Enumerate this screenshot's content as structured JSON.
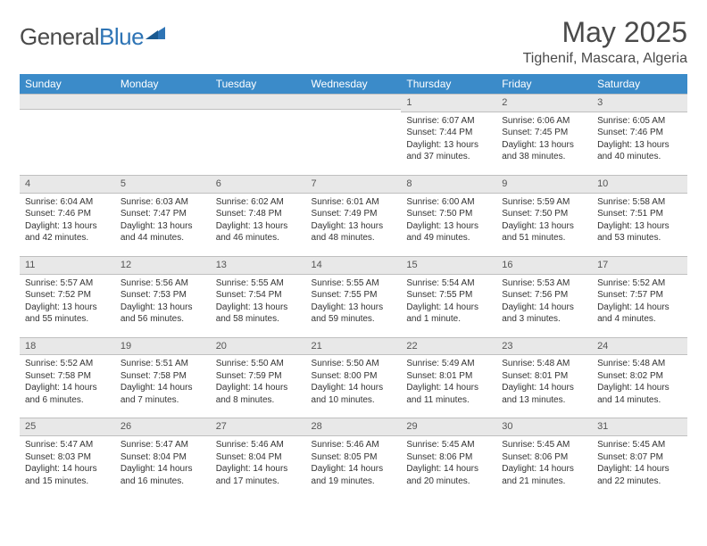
{
  "brand": {
    "part1": "General",
    "part2": "Blue"
  },
  "title": "May 2025",
  "location": "Tighenif, Mascara, Algeria",
  "colors": {
    "header_bg": "#3b8bc9",
    "header_text": "#ffffff",
    "daynum_bg": "#e8e8e8",
    "daynum_border": "#bfbfbf",
    "body_text": "#333333",
    "title_text": "#4a4a4a",
    "brand_blue": "#2e74b5"
  },
  "weekdays": [
    "Sunday",
    "Monday",
    "Tuesday",
    "Wednesday",
    "Thursday",
    "Friday",
    "Saturday"
  ],
  "weeks": [
    [
      null,
      null,
      null,
      null,
      {
        "n": "1",
        "sr": "Sunrise: 6:07 AM",
        "ss": "Sunset: 7:44 PM",
        "dl": "Daylight: 13 hours and 37 minutes."
      },
      {
        "n": "2",
        "sr": "Sunrise: 6:06 AM",
        "ss": "Sunset: 7:45 PM",
        "dl": "Daylight: 13 hours and 38 minutes."
      },
      {
        "n": "3",
        "sr": "Sunrise: 6:05 AM",
        "ss": "Sunset: 7:46 PM",
        "dl": "Daylight: 13 hours and 40 minutes."
      }
    ],
    [
      {
        "n": "4",
        "sr": "Sunrise: 6:04 AM",
        "ss": "Sunset: 7:46 PM",
        "dl": "Daylight: 13 hours and 42 minutes."
      },
      {
        "n": "5",
        "sr": "Sunrise: 6:03 AM",
        "ss": "Sunset: 7:47 PM",
        "dl": "Daylight: 13 hours and 44 minutes."
      },
      {
        "n": "6",
        "sr": "Sunrise: 6:02 AM",
        "ss": "Sunset: 7:48 PM",
        "dl": "Daylight: 13 hours and 46 minutes."
      },
      {
        "n": "7",
        "sr": "Sunrise: 6:01 AM",
        "ss": "Sunset: 7:49 PM",
        "dl": "Daylight: 13 hours and 48 minutes."
      },
      {
        "n": "8",
        "sr": "Sunrise: 6:00 AM",
        "ss": "Sunset: 7:50 PM",
        "dl": "Daylight: 13 hours and 49 minutes."
      },
      {
        "n": "9",
        "sr": "Sunrise: 5:59 AM",
        "ss": "Sunset: 7:50 PM",
        "dl": "Daylight: 13 hours and 51 minutes."
      },
      {
        "n": "10",
        "sr": "Sunrise: 5:58 AM",
        "ss": "Sunset: 7:51 PM",
        "dl": "Daylight: 13 hours and 53 minutes."
      }
    ],
    [
      {
        "n": "11",
        "sr": "Sunrise: 5:57 AM",
        "ss": "Sunset: 7:52 PM",
        "dl": "Daylight: 13 hours and 55 minutes."
      },
      {
        "n": "12",
        "sr": "Sunrise: 5:56 AM",
        "ss": "Sunset: 7:53 PM",
        "dl": "Daylight: 13 hours and 56 minutes."
      },
      {
        "n": "13",
        "sr": "Sunrise: 5:55 AM",
        "ss": "Sunset: 7:54 PM",
        "dl": "Daylight: 13 hours and 58 minutes."
      },
      {
        "n": "14",
        "sr": "Sunrise: 5:55 AM",
        "ss": "Sunset: 7:55 PM",
        "dl": "Daylight: 13 hours and 59 minutes."
      },
      {
        "n": "15",
        "sr": "Sunrise: 5:54 AM",
        "ss": "Sunset: 7:55 PM",
        "dl": "Daylight: 14 hours and 1 minute."
      },
      {
        "n": "16",
        "sr": "Sunrise: 5:53 AM",
        "ss": "Sunset: 7:56 PM",
        "dl": "Daylight: 14 hours and 3 minutes."
      },
      {
        "n": "17",
        "sr": "Sunrise: 5:52 AM",
        "ss": "Sunset: 7:57 PM",
        "dl": "Daylight: 14 hours and 4 minutes."
      }
    ],
    [
      {
        "n": "18",
        "sr": "Sunrise: 5:52 AM",
        "ss": "Sunset: 7:58 PM",
        "dl": "Daylight: 14 hours and 6 minutes."
      },
      {
        "n": "19",
        "sr": "Sunrise: 5:51 AM",
        "ss": "Sunset: 7:58 PM",
        "dl": "Daylight: 14 hours and 7 minutes."
      },
      {
        "n": "20",
        "sr": "Sunrise: 5:50 AM",
        "ss": "Sunset: 7:59 PM",
        "dl": "Daylight: 14 hours and 8 minutes."
      },
      {
        "n": "21",
        "sr": "Sunrise: 5:50 AM",
        "ss": "Sunset: 8:00 PM",
        "dl": "Daylight: 14 hours and 10 minutes."
      },
      {
        "n": "22",
        "sr": "Sunrise: 5:49 AM",
        "ss": "Sunset: 8:01 PM",
        "dl": "Daylight: 14 hours and 11 minutes."
      },
      {
        "n": "23",
        "sr": "Sunrise: 5:48 AM",
        "ss": "Sunset: 8:01 PM",
        "dl": "Daylight: 14 hours and 13 minutes."
      },
      {
        "n": "24",
        "sr": "Sunrise: 5:48 AM",
        "ss": "Sunset: 8:02 PM",
        "dl": "Daylight: 14 hours and 14 minutes."
      }
    ],
    [
      {
        "n": "25",
        "sr": "Sunrise: 5:47 AM",
        "ss": "Sunset: 8:03 PM",
        "dl": "Daylight: 14 hours and 15 minutes."
      },
      {
        "n": "26",
        "sr": "Sunrise: 5:47 AM",
        "ss": "Sunset: 8:04 PM",
        "dl": "Daylight: 14 hours and 16 minutes."
      },
      {
        "n": "27",
        "sr": "Sunrise: 5:46 AM",
        "ss": "Sunset: 8:04 PM",
        "dl": "Daylight: 14 hours and 17 minutes."
      },
      {
        "n": "28",
        "sr": "Sunrise: 5:46 AM",
        "ss": "Sunset: 8:05 PM",
        "dl": "Daylight: 14 hours and 19 minutes."
      },
      {
        "n": "29",
        "sr": "Sunrise: 5:45 AM",
        "ss": "Sunset: 8:06 PM",
        "dl": "Daylight: 14 hours and 20 minutes."
      },
      {
        "n": "30",
        "sr": "Sunrise: 5:45 AM",
        "ss": "Sunset: 8:06 PM",
        "dl": "Daylight: 14 hours and 21 minutes."
      },
      {
        "n": "31",
        "sr": "Sunrise: 5:45 AM",
        "ss": "Sunset: 8:07 PM",
        "dl": "Daylight: 14 hours and 22 minutes."
      }
    ]
  ]
}
